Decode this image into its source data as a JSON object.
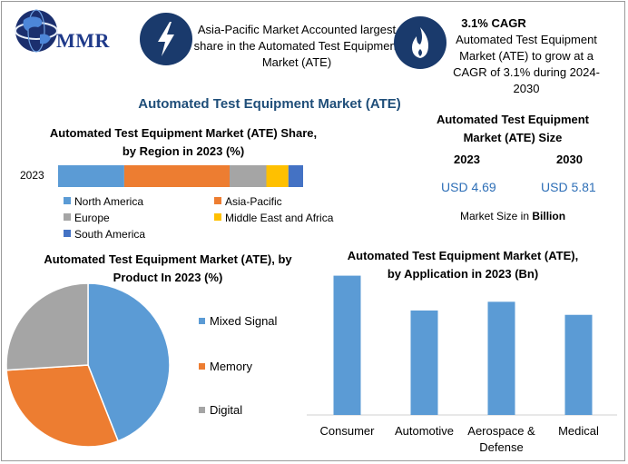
{
  "logo": {
    "text": "MMR"
  },
  "header": {
    "fact1": "Asia-Pacific Market Accounted largest share in the Automated Test Equipment Market (ATE)",
    "fact2_title": "3.1% CAGR",
    "fact2_text": "Automated Test Equipment Market (ATE) to grow at a CAGR of 3.1% during 2024-2030",
    "fact1_icon": "lightning-icon",
    "fact2_icon": "flame-icon"
  },
  "main_title": "Automated Test Equipment Market (ATE)",
  "colors": {
    "blue": "#5b9bd5",
    "orange": "#ed7d31",
    "gray": "#a5a5a5",
    "yellow": "#ffc000",
    "darkblue": "#4472c4",
    "navy": "#1a3a6c",
    "title_blue": "#1f4e79",
    "usd": "#2e6fb7"
  },
  "size_panel": {
    "title": "Automated Test Equipment Market (ATE) Size",
    "year1": "2023",
    "year2": "2030",
    "value1": "USD 4.69",
    "value2": "USD 5.81",
    "note_prefix": "Market Size in ",
    "note_bold": "Billion"
  },
  "chart_data": [
    {
      "type": "bar",
      "orientation": "horizontal-stacked",
      "title": "Automated Test Equipment Market (ATE) Share, by Region in 2023 (%)",
      "categories": [
        "2023"
      ],
      "series": [
        {
          "name": "North America",
          "values": [
            27
          ],
          "color": "#5b9bd5"
        },
        {
          "name": "Asia-Pacific",
          "values": [
            43
          ],
          "color": "#ed7d31"
        },
        {
          "name": "Europe",
          "values": [
            15
          ],
          "color": "#a5a5a5"
        },
        {
          "name": "Middle East and Africa",
          "values": [
            9
          ],
          "color": "#ffc000"
        },
        {
          "name": "South America",
          "values": [
            6
          ],
          "color": "#4472c4"
        }
      ],
      "legend": "bottom"
    },
    {
      "type": "pie",
      "title": "Automated Test Equipment Market (ATE), by Product In 2023 (%)",
      "categories": [
        "Mixed Signal",
        "Memory",
        "Digital"
      ],
      "values": [
        44,
        30,
        26
      ],
      "colors": [
        "#5b9bd5",
        "#ed7d31",
        "#a5a5a5"
      ],
      "legend": "right"
    },
    {
      "type": "bar",
      "title": "Automated Test Equipment Market (ATE), by Application in 2023 (Bn)",
      "categories": [
        "Consumer",
        "Automotive",
        "Aerospace & Defense",
        "Medical"
      ],
      "values": [
        1.6,
        1.2,
        1.3,
        1.15
      ],
      "ylim": [
        0,
        1.7
      ],
      "color": "#5b9bd5"
    }
  ]
}
